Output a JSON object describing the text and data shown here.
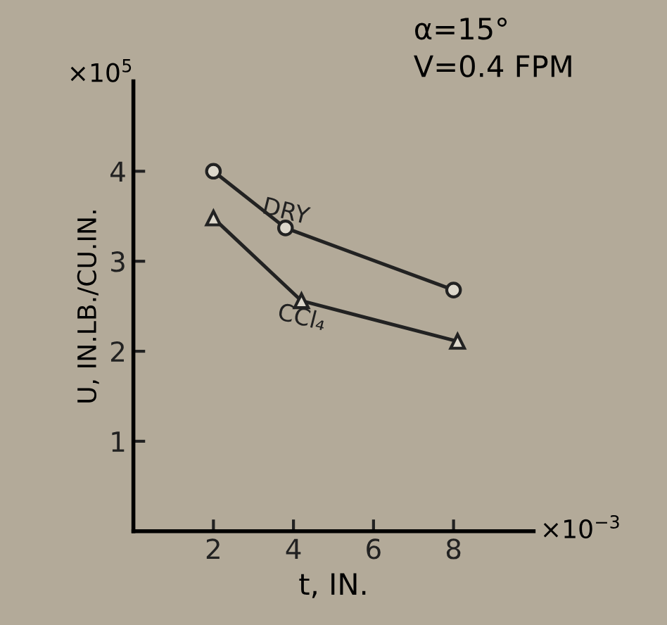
{
  "chart_data": {
    "type": "line",
    "xlabel": "t, IN.",
    "ylabel": "U, IN.LB./CU.IN.",
    "annotations": [
      "α=15°",
      "V=0.4 FPM",
      "×10$^{5}$",
      "×10$^{−3}$"
    ],
    "xlim": [
      0,
      10
    ],
    "ylim": [
      0,
      5
    ],
    "xticks": [
      2,
      4,
      6,
      8
    ],
    "yticks": [
      1,
      2,
      3,
      4
    ],
    "grid": false,
    "legend": false,
    "series": [
      {
        "name": "DRY",
        "color": "#222222",
        "marker": "circle",
        "x": [
          2,
          3.8,
          8
        ],
        "values": [
          4.0,
          3.37,
          2.68
        ]
      },
      {
        "name": "CCl₄",
        "color": "#222222",
        "marker": "triangle",
        "x": [
          2,
          4.2,
          8.1
        ],
        "values": [
          3.48,
          2.56,
          2.11
        ]
      }
    ]
  }
}
